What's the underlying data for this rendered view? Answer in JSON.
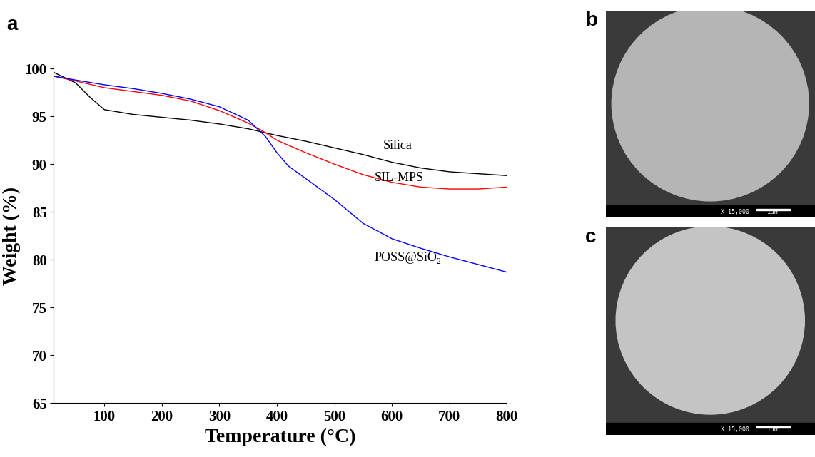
{
  "chart_data": {
    "type": "line",
    "x_label": "Temperature (°C)",
    "y_label": "Weight (%)",
    "xlim": [
      12,
      800
    ],
    "xticks": [
      100,
      200,
      300,
      400,
      500,
      600,
      700,
      800
    ],
    "ylim": [
      65,
      100
    ],
    "yticks": [
      65,
      70,
      75,
      80,
      85,
      90,
      95,
      100
    ],
    "grid": false,
    "series": [
      {
        "name": "Silica",
        "color": "#000000",
        "x": [
          12,
          50,
          75,
          100,
          150,
          200,
          250,
          300,
          350,
          400,
          450,
          500,
          550,
          600,
          650,
          700,
          750,
          800
        ],
        "values": [
          99.6,
          98.5,
          97.0,
          95.7,
          95.2,
          94.9,
          94.6,
          94.2,
          93.7,
          93.0,
          92.4,
          91.7,
          91.0,
          90.2,
          89.6,
          89.2,
          89.0,
          88.8
        ]
      },
      {
        "name": "SIL-MPS",
        "color": "#ff0000",
        "x": [
          12,
          50,
          100,
          150,
          200,
          250,
          300,
          350,
          380,
          400,
          450,
          500,
          550,
          600,
          650,
          700,
          750,
          800
        ],
        "values": [
          99.2,
          98.7,
          98.0,
          97.6,
          97.2,
          96.6,
          95.6,
          94.3,
          93.3,
          92.5,
          91.2,
          90.0,
          88.9,
          88.1,
          87.6,
          87.4,
          87.4,
          87.6
        ]
      },
      {
        "name": "POSS@SiO₂",
        "color": "#0000ff",
        "x": [
          12,
          50,
          100,
          150,
          200,
          250,
          300,
          350,
          380,
          400,
          420,
          450,
          500,
          550,
          600,
          650,
          700,
          750,
          800
        ],
        "values": [
          99.2,
          98.8,
          98.3,
          97.9,
          97.4,
          96.8,
          96.0,
          94.6,
          92.9,
          91.2,
          89.8,
          88.5,
          86.3,
          83.8,
          82.2,
          81.2,
          80.3,
          79.5,
          78.7
        ]
      }
    ]
  },
  "panel_labels": [
    "a",
    "b",
    "c"
  ],
  "micrographs": [
    {
      "magnification": "X 15,000",
      "scale_bar": "1µm"
    },
    {
      "magnification": "X 15,000",
      "scale_bar": "1µm"
    }
  ]
}
